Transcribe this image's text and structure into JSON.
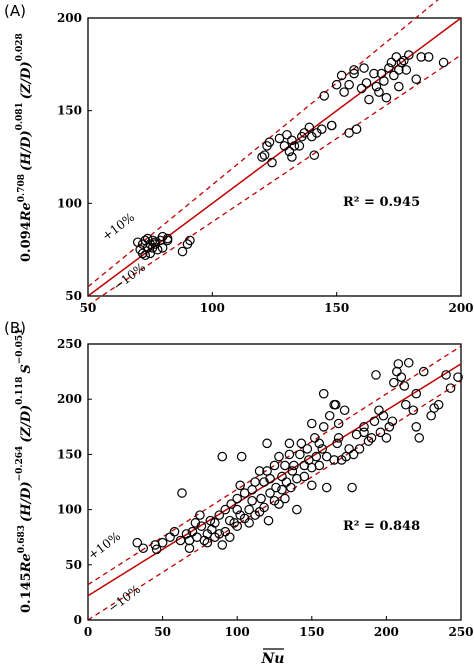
{
  "chart_data": [
    {
      "panel": "(A)",
      "type": "scatter",
      "xlim": [
        50,
        200
      ],
      "ylim": [
        50,
        200
      ],
      "x_ticks": [
        "50",
        "100",
        "150",
        "200"
      ],
      "y_ticks": [
        "50",
        "100",
        "150",
        "200"
      ],
      "ylabel_parts": [
        "0.094",
        "Re",
        "0.708",
        "(H/D)",
        "0.081",
        "(Z/D)",
        "0.028"
      ],
      "xlabel": "",
      "r2_label": "R² = 0.945",
      "upper_band_label": "+10%",
      "lower_band_label": "−10%",
      "fit_line": [
        [
          50,
          50
        ],
        [
          200,
          200
        ]
      ],
      "upper_band": [
        [
          50,
          55
        ],
        [
          200,
          220
        ]
      ],
      "lower_band": [
        [
          50,
          45
        ],
        [
          200,
          180
        ]
      ],
      "grid": false,
      "colors": {
        "marker": "#000000",
        "fit": "#c00000",
        "band": "#c00000"
      },
      "points": [
        [
          70,
          79
        ],
        [
          71,
          75
        ],
        [
          72,
          73
        ],
        [
          72,
          78
        ],
        [
          73,
          80
        ],
        [
          73,
          72
        ],
        [
          74,
          76
        ],
        [
          74,
          81
        ],
        [
          75,
          78
        ],
        [
          75,
          73
        ],
        [
          76,
          80
        ],
        [
          76,
          76
        ],
        [
          77,
          79
        ],
        [
          77,
          78
        ],
        [
          78,
          75
        ],
        [
          79,
          80
        ],
        [
          80,
          82
        ],
        [
          80,
          76
        ],
        [
          82,
          81
        ],
        [
          82,
          80
        ],
        [
          88,
          74
        ],
        [
          90,
          78
        ],
        [
          91,
          80
        ],
        [
          120,
          125
        ],
        [
          121,
          126
        ],
        [
          122,
          131
        ],
        [
          123,
          133
        ],
        [
          124,
          122
        ],
        [
          127,
          135
        ],
        [
          129,
          131
        ],
        [
          130,
          137
        ],
        [
          131,
          128
        ],
        [
          132,
          125
        ],
        [
          132,
          134
        ],
        [
          133,
          131
        ],
        [
          135,
          131
        ],
        [
          136,
          136
        ],
        [
          137,
          138
        ],
        [
          139,
          141
        ],
        [
          140,
          136
        ],
        [
          141,
          126
        ],
        [
          142,
          138
        ],
        [
          144,
          140
        ],
        [
          145,
          158
        ],
        [
          148,
          142
        ],
        [
          148,
          142
        ],
        [
          150,
          164
        ],
        [
          152,
          169
        ],
        [
          153,
          160
        ],
        [
          155,
          164
        ],
        [
          155,
          138
        ],
        [
          157,
          172
        ],
        [
          157,
          170
        ],
        [
          158,
          140
        ],
        [
          160,
          162
        ],
        [
          161,
          173
        ],
        [
          162,
          165
        ],
        [
          163,
          156
        ],
        [
          165,
          170
        ],
        [
          166,
          163
        ],
        [
          167,
          160
        ],
        [
          168,
          170
        ],
        [
          169,
          166
        ],
        [
          170,
          157
        ],
        [
          171,
          173
        ],
        [
          172,
          176
        ],
        [
          173,
          169
        ],
        [
          174,
          179
        ],
        [
          175,
          172
        ],
        [
          175,
          163
        ],
        [
          176,
          176
        ],
        [
          177,
          177
        ],
        [
          178,
          172
        ],
        [
          179,
          180
        ],
        [
          182,
          167
        ],
        [
          184,
          179
        ],
        [
          187,
          179
        ],
        [
          193,
          176
        ]
      ]
    },
    {
      "panel": "(B)",
      "type": "scatter",
      "xlim": [
        0,
        250
      ],
      "ylim": [
        0,
        250
      ],
      "x_ticks": [
        "0",
        "50",
        "100",
        "150",
        "200",
        "250"
      ],
      "y_ticks": [
        "0",
        "50",
        "100",
        "150",
        "200",
        "250"
      ],
      "ylabel_parts": [
        "0.145",
        "Re",
        "0.683",
        "(H/D)",
        "−0.264",
        "(Z/D)",
        "0.118",
        "S",
        "−0.051"
      ],
      "xlabel": "Nu",
      "r2_label": "R² = 0.848",
      "upper_band_label": "+10%",
      "lower_band_label": "−10%",
      "fit_line": [
        [
          0,
          22
        ],
        [
          250,
          232
        ]
      ],
      "upper_band": [
        [
          0,
          32
        ],
        [
          250,
          248
        ]
      ],
      "lower_band": [
        [
          0,
          0
        ],
        [
          250,
          216
        ]
      ],
      "grid": false,
      "colors": {
        "marker": "#000000",
        "fit": "#c00000",
        "band": "#c00000"
      },
      "points": [
        [
          33,
          70
        ],
        [
          37,
          65
        ],
        [
          45,
          68
        ],
        [
          46,
          64
        ],
        [
          50,
          70
        ],
        [
          55,
          75
        ],
        [
          58,
          80
        ],
        [
          62,
          72
        ],
        [
          63,
          115
        ],
        [
          66,
          78
        ],
        [
          68,
          65
        ],
        [
          68,
          72
        ],
        [
          70,
          80
        ],
        [
          72,
          88
        ],
        [
          73,
          75
        ],
        [
          75,
          95
        ],
        [
          76,
          85
        ],
        [
          78,
          72
        ],
        [
          80,
          70
        ],
        [
          80,
          78
        ],
        [
          82,
          90
        ],
        [
          83,
          82
        ],
        [
          85,
          88
        ],
        [
          85,
          75
        ],
        [
          88,
          78
        ],
        [
          88,
          95
        ],
        [
          90,
          68
        ],
        [
          90,
          148
        ],
        [
          92,
          100
        ],
        [
          92,
          80
        ],
        [
          95,
          90
        ],
        [
          95,
          75
        ],
        [
          96,
          105
        ],
        [
          98,
          88
        ],
        [
          100,
          100
        ],
        [
          100,
          110
        ],
        [
          100,
          85
        ],
        [
          102,
          95
        ],
        [
          102,
          122
        ],
        [
          103,
          148
        ],
        [
          105,
          115
        ],
        [
          105,
          92
        ],
        [
          108,
          100
        ],
        [
          108,
          88
        ],
        [
          110,
          118
        ],
        [
          110,
          108
        ],
        [
          112,
          95
        ],
        [
          112,
          125
        ],
        [
          115,
          135
        ],
        [
          115,
          98
        ],
        [
          116,
          110
        ],
        [
          118,
          102
        ],
        [
          118,
          125
        ],
        [
          120,
          160
        ],
        [
          120,
          135
        ],
        [
          121,
          90
        ],
        [
          122,
          115
        ],
        [
          122,
          128
        ],
        [
          125,
          108
        ],
        [
          125,
          140
        ],
        [
          126,
          120
        ],
        [
          128,
          105
        ],
        [
          128,
          148
        ],
        [
          130,
          130
        ],
        [
          130,
          118
        ],
        [
          132,
          110
        ],
        [
          132,
          140
        ],
        [
          133,
          125
        ],
        [
          135,
          160
        ],
        [
          135,
          150
        ],
        [
          136,
          120
        ],
        [
          137,
          135
        ],
        [
          138,
          140
        ],
        [
          140,
          100
        ],
        [
          140,
          128
        ],
        [
          142,
          150
        ],
        [
          143,
          160
        ],
        [
          145,
          130
        ],
        [
          145,
          140
        ],
        [
          147,
          155
        ],
        [
          148,
          145
        ],
        [
          150,
          122
        ],
        [
          150,
          138
        ],
        [
          150,
          178
        ],
        [
          152,
          165
        ],
        [
          153,
          148
        ],
        [
          155,
          140
        ],
        [
          155,
          160
        ],
        [
          157,
          155
        ],
        [
          158,
          175
        ],
        [
          158,
          205
        ],
        [
          160,
          120
        ],
        [
          160,
          148
        ],
        [
          162,
          185
        ],
        [
          165,
          145
        ],
        [
          165,
          195
        ],
        [
          166,
          195
        ],
        [
          167,
          160
        ],
        [
          168,
          165
        ],
        [
          168,
          178
        ],
        [
          170,
          145
        ],
        [
          172,
          190
        ],
        [
          173,
          148
        ],
        [
          175,
          155
        ],
        [
          177,
          120
        ],
        [
          178,
          150
        ],
        [
          180,
          168
        ],
        [
          182,
          155
        ],
        [
          185,
          175
        ],
        [
          185,
          170
        ],
        [
          188,
          162
        ],
        [
          190,
          165
        ],
        [
          192,
          180
        ],
        [
          193,
          222
        ],
        [
          195,
          190
        ],
        [
          196,
          170
        ],
        [
          198,
          185
        ],
        [
          200,
          165
        ],
        [
          202,
          175
        ],
        [
          204,
          180
        ],
        [
          205,
          215
        ],
        [
          207,
          225
        ],
        [
          208,
          232
        ],
        [
          210,
          220
        ],
        [
          212,
          212
        ],
        [
          213,
          195
        ],
        [
          215,
          233
        ],
        [
          218,
          190
        ],
        [
          220,
          205
        ],
        [
          220,
          175
        ],
        [
          222,
          165
        ],
        [
          225,
          225
        ],
        [
          230,
          185
        ],
        [
          232,
          192
        ],
        [
          235,
          195
        ],
        [
          240,
          222
        ],
        [
          243,
          210
        ],
        [
          248,
          220
        ]
      ]
    }
  ]
}
